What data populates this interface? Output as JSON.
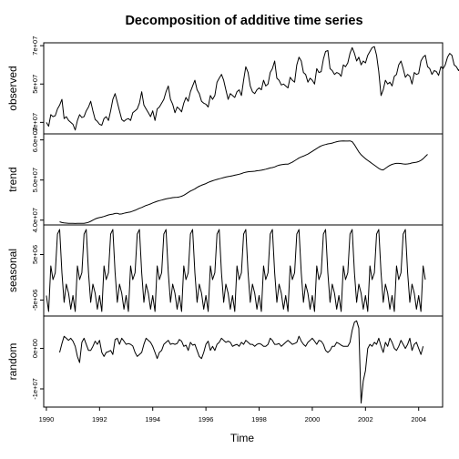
{
  "chart_data": {
    "type": "line",
    "title": "Decomposition of additive time series",
    "xlabel": "Time",
    "x_ticks": [
      "1990",
      "1992",
      "1994",
      "1996",
      "1998",
      "2000",
      "2002",
      "2004"
    ],
    "x_range": [
      1989.9,
      2004.9
    ],
    "frequency": 12,
    "panels": [
      {
        "ylabel": "observed",
        "y_ticks": [
          {
            "value": 30000000,
            "label": "3e+07"
          },
          {
            "value": 50000000,
            "label": "5e+07"
          },
          {
            "value": 70000000,
            "label": "7e+07"
          }
        ],
        "ylim": [
          24000000,
          71500000
        ],
        "start": 1990.0,
        "values": [
          30000000,
          28000000,
          34000000,
          33000000,
          33500000,
          37000000,
          39000000,
          42000000,
          32000000,
          33000000,
          31000000,
          30000000,
          29000000,
          26000000,
          31000000,
          34000000,
          32500000,
          33000000,
          36000000,
          38000000,
          41000000,
          36000000,
          31500000,
          30500000,
          29000000,
          28500000,
          32000000,
          33000000,
          31000000,
          36000000,
          42000000,
          45000000,
          40500000,
          36000000,
          31500000,
          30500000,
          31500000,
          32000000,
          31000000,
          35000000,
          36000000,
          37000000,
          40000000,
          46000000,
          39000000,
          37000000,
          35000000,
          33000000,
          36000000,
          31000000,
          37000000,
          38000000,
          40000000,
          42000000,
          46000000,
          49000000,
          42000000,
          39500000,
          35000000,
          38000000,
          37000000,
          35500000,
          40000000,
          43000000,
          41000000,
          46000000,
          49000000,
          52000000,
          47000000,
          45000000,
          41000000,
          40000000,
          39500000,
          38000000,
          44000000,
          42000000,
          44000000,
          51000000,
          53000000,
          55000000,
          52000000,
          47000000,
          42000000,
          45000000,
          44000000,
          43000000,
          46000000,
          47000000,
          44000000,
          52000000,
          59000000,
          56000000,
          49000000,
          46000000,
          45000000,
          47000000,
          48000000,
          47000000,
          52000000,
          49000000,
          50000000,
          56000000,
          58000000,
          62000000,
          53000000,
          52000000,
          49500000,
          50000000,
          49000000,
          48000000,
          53500000,
          52000000,
          51000000,
          60000000,
          64000000,
          62000000,
          56000000,
          55000000,
          51000000,
          53000000,
          52000000,
          50000000,
          58000000,
          56000000,
          56500000,
          63000000,
          67000000,
          67500000,
          58000000,
          57000000,
          55000000,
          56000000,
          55500000,
          54000000,
          60000000,
          59000000,
          61000000,
          66000000,
          69000000,
          66000000,
          62000000,
          64000000,
          60000000,
          62000000,
          61000000,
          65000000,
          67000000,
          69000000,
          69500000,
          65000000,
          56500000,
          44000000,
          47000000,
          52000000,
          50000000,
          51000000,
          49000000,
          54000000,
          55000000,
          60000000,
          62000000,
          58000000,
          53500000,
          55000000,
          54000000,
          50000000,
          56000000,
          55000000,
          55500000,
          62000000,
          64000000,
          65000000,
          59000000,
          58000000,
          55000000,
          57000000,
          56500000,
          54500000,
          59000000,
          58000000,
          60000000,
          64000000,
          66000000,
          65000000,
          60000000,
          59000000,
          57000000,
          59000000,
          58000000,
          57000000,
          62000000,
          61000000,
          66000000,
          65500000
        ]
      },
      {
        "ylabel": "trend",
        "y_ticks": [
          {
            "value": 40000000,
            "label": "4.0e+07"
          },
          {
            "value": 50000000,
            "label": "5.0e+07"
          },
          {
            "value": 60000000,
            "label": "6.0e+07"
          }
        ],
        "ylim": [
          38800000,
          61500000
        ],
        "start": 1990.5,
        "values": [
          39600000,
          39400000,
          39300000,
          39250000,
          39200000,
          39180000,
          39180000,
          39170000,
          39200000,
          39180000,
          39180000,
          39180000,
          39300000,
          39450000,
          39700000,
          40000000,
          40300000,
          40500000,
          40650000,
          40750000,
          40900000,
          41100000,
          41300000,
          41400000,
          41500000,
          41650000,
          41700000,
          41500000,
          41550000,
          41700000,
          41850000,
          41950000,
          42050000,
          42250000,
          42450000,
          42700000,
          42950000,
          43150000,
          43400000,
          43650000,
          43850000,
          44050000,
          44300000,
          44500000,
          44700000,
          44850000,
          45000000,
          45150000,
          45300000,
          45400000,
          45500000,
          45600000,
          45650000,
          45700000,
          45800000,
          45950000,
          46200000,
          46550000,
          46900000,
          47250000,
          47500000,
          47800000,
          48150000,
          48450000,
          48700000,
          48900000,
          49100000,
          49400000,
          49600000,
          49800000,
          50000000,
          50150000,
          50300000,
          50450000,
          50600000,
          50750000,
          50850000,
          50950000,
          51050000,
          51200000,
          51300000,
          51450000,
          51600000,
          51800000,
          51950000,
          52050000,
          52100000,
          52150000,
          52200000,
          52300000,
          52350000,
          52450000,
          52550000,
          52700000,
          52850000,
          53000000,
          53100000,
          53250000,
          53500000,
          53700000,
          53800000,
          53900000,
          53950000,
          53950000,
          54200000,
          54450000,
          54800000,
          55150000,
          55500000,
          55750000,
          55950000,
          56200000,
          56450000,
          56800000,
          57150000,
          57500000,
          57850000,
          58200000,
          58500000,
          58700000,
          58850000,
          59000000,
          59100000,
          59200000,
          59400000,
          59550000,
          59650000,
          59700000,
          59750000,
          59700000,
          59700000,
          59750000,
          59550000,
          58800000,
          57900000,
          57000000,
          56300000,
          55800000,
          55300000,
          54900000,
          54500000,
          54100000,
          53700000,
          53300000,
          52900000,
          52600000,
          52500000,
          52900000,
          53300000,
          53650000,
          53900000,
          54050000,
          54150000,
          54150000,
          54100000,
          54000000,
          53950000,
          54000000,
          54100000,
          54250000,
          54350000,
          54450000,
          54600000,
          54900000,
          55300000,
          55850000,
          56400000
        ]
      },
      {
        "ylabel": "seasonal",
        "y_ticks": [
          {
            "value": -5000000,
            "label": "-5e+06"
          },
          {
            "value": 5000000,
            "label": "5e+06"
          }
        ],
        "ylim": [
          -8500000,
          11500000
        ],
        "start": 1990.0,
        "pattern": [
          -4000000,
          -7500000,
          2500000,
          -500000,
          1000000,
          9500000,
          10500000,
          1000000,
          -5500000,
          -1500000,
          -3500000,
          -7000000
        ]
      },
      {
        "ylabel": "random",
        "y_ticks": [
          {
            "value": -10000000,
            "label": "-1e+07"
          },
          {
            "value": 0,
            "label": "0e+00"
          }
        ],
        "ylim": [
          -14500000,
          8000000
        ],
        "start": 1990.5,
        "values": [
          -1000000,
          1200000,
          3000000,
          2500000,
          2000000,
          2500000,
          1800000,
          500000,
          -2000000,
          -3500000,
          1500000,
          2500000,
          1000000,
          -500000,
          -500000,
          500000,
          1800000,
          1000000,
          2000000,
          -1000000,
          -2000000,
          -1000000,
          -800000,
          -500000,
          -1500000,
          2200000,
          2500000,
          1000000,
          2500000,
          1800000,
          1000000,
          1200000,
          1000000,
          600000,
          -1000000,
          -2000000,
          -1500000,
          -1000000,
          1000000,
          2500000,
          2000000,
          1500000,
          500000,
          -1000000,
          -2500000,
          -1000000,
          -500000,
          1000000,
          1500000,
          2000000,
          1000000,
          1200000,
          1000000,
          1200000,
          2200000,
          1800000,
          500000,
          800000,
          -500000,
          1500000,
          800000,
          1000000,
          -500000,
          -2000000,
          -2500000,
          -1000000,
          1000000,
          1800000,
          -500000,
          500000,
          -500000,
          1000000,
          1500000,
          2500000,
          2000000,
          1500000,
          1800000,
          1500000,
          500000,
          800000,
          1000000,
          500000,
          1500000,
          1000000,
          2000000,
          1500000,
          1000000,
          1000000,
          500000,
          1000000,
          1200000,
          1000000,
          500000,
          500000,
          1000000,
          2500000,
          2000000,
          1000000,
          1000000,
          1200000,
          500000,
          1000000,
          1500000,
          2000000,
          1500000,
          1000000,
          1200000,
          1500000,
          3000000,
          1800000,
          1000000,
          500000,
          1500000,
          2000000,
          2500000,
          1800000,
          1000000,
          2000000,
          1800000,
          1000000,
          -500000,
          -1000000,
          -500000,
          500000,
          500000,
          1500000,
          1200000,
          800000,
          500000,
          500000,
          500000,
          1500000,
          4500000,
          6500000,
          6800000,
          5000000,
          -13500000,
          -8000000,
          -5500000,
          0,
          1000000,
          500000,
          1500000,
          1000000,
          2500000,
          500000,
          -1000000,
          1500000,
          500000,
          2500000,
          1500000,
          0,
          -500000,
          500000,
          2000000,
          1000000,
          0,
          1000000,
          2500000,
          -500000,
          1000000,
          1500000,
          0,
          -1500000,
          500000
        ]
      }
    ]
  }
}
